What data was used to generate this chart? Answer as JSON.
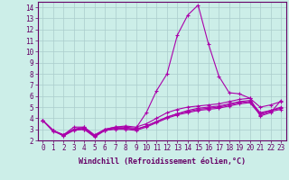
{
  "xlabel": "Windchill (Refroidissement éolien,°C)",
  "xlim": [
    -0.5,
    23.5
  ],
  "ylim": [
    2,
    14.5
  ],
  "xticks": [
    0,
    1,
    2,
    3,
    4,
    5,
    6,
    7,
    8,
    9,
    10,
    11,
    12,
    13,
    14,
    15,
    16,
    17,
    18,
    19,
    20,
    21,
    22,
    23
  ],
  "yticks": [
    2,
    3,
    4,
    5,
    6,
    7,
    8,
    9,
    10,
    11,
    12,
    13,
    14
  ],
  "bg_color": "#cceee8",
  "grid_color": "#aacccc",
  "line_color": "#aa00aa",
  "lines": [
    [
      3.8,
      2.9,
      2.5,
      3.2,
      3.2,
      2.4,
      3.0,
      3.2,
      3.2,
      3.1,
      4.5,
      6.5,
      8.0,
      11.5,
      13.3,
      14.2,
      10.7,
      7.8,
      6.3,
      6.2,
      5.8,
      4.2,
      4.5,
      5.6
    ],
    [
      3.8,
      2.9,
      2.5,
      3.0,
      3.2,
      2.5,
      3.0,
      3.2,
      3.3,
      3.2,
      3.5,
      4.0,
      4.5,
      4.8,
      5.0,
      5.1,
      5.2,
      5.3,
      5.5,
      5.7,
      5.8,
      5.0,
      5.2,
      5.5
    ],
    [
      3.8,
      2.8,
      2.5,
      3.0,
      3.0,
      2.4,
      2.9,
      3.1,
      3.1,
      3.0,
      3.3,
      3.7,
      4.1,
      4.4,
      4.7,
      4.9,
      5.0,
      5.1,
      5.3,
      5.5,
      5.6,
      4.5,
      4.7,
      5.0
    ],
    [
      3.8,
      2.9,
      2.4,
      3.0,
      3.1,
      2.4,
      2.9,
      3.1,
      3.1,
      3.0,
      3.3,
      3.7,
      4.1,
      4.4,
      4.6,
      4.8,
      4.9,
      5.0,
      5.2,
      5.4,
      5.5,
      4.4,
      4.7,
      4.9
    ],
    [
      3.8,
      2.9,
      2.4,
      2.9,
      3.0,
      2.3,
      2.9,
      3.0,
      3.0,
      2.9,
      3.2,
      3.6,
      4.0,
      4.3,
      4.5,
      4.7,
      4.8,
      4.9,
      5.1,
      5.3,
      5.4,
      4.3,
      4.6,
      4.8
    ]
  ],
  "marker": "+",
  "markersize": 3,
  "linewidth": 0.8,
  "tick_fontsize": 5.5,
  "xlabel_fontsize": 6.0
}
